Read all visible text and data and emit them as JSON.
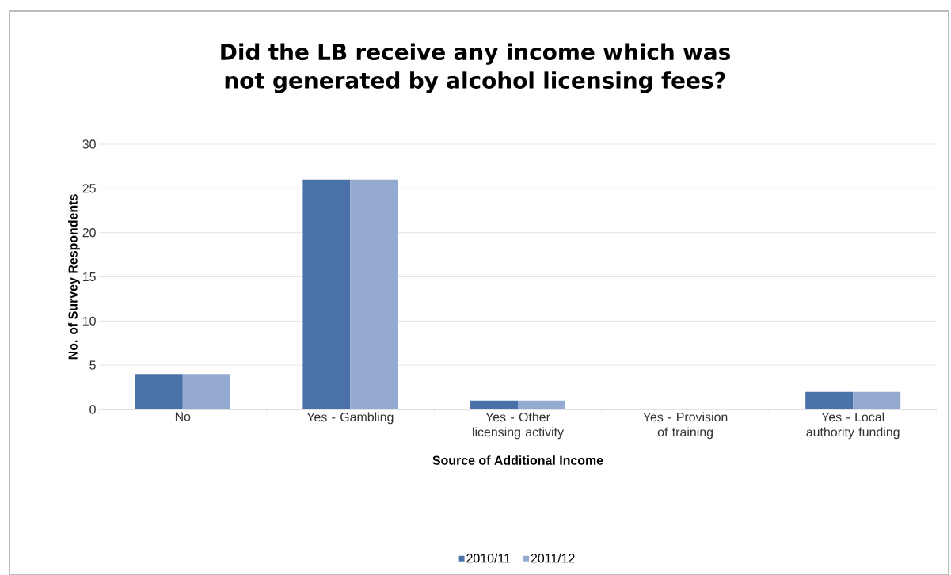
{
  "chart_data": {
    "type": "bar",
    "title": "Did the LB receive any income which was not generated by alcohol licensing fees?",
    "xlabel": "Source of Additional Income",
    "ylabel": "No. of Survey Respondents",
    "categories": [
      "No",
      "Yes - Gambling",
      "Yes - Other licensing activity",
      "Yes - Provision of training",
      "Yes - Local authority funding"
    ],
    "series": [
      {
        "name": "2010/11",
        "color": "#4a72a8",
        "values": [
          4,
          26,
          1,
          0,
          2
        ]
      },
      {
        "name": "2011/12",
        "color": "#95aad0",
        "values": [
          4,
          26,
          1,
          0,
          2
        ]
      }
    ],
    "ylim": [
      0,
      30
    ],
    "yticks": [
      0,
      5,
      10,
      15,
      20,
      25,
      30
    ],
    "grid": "y",
    "legend": "bottom"
  }
}
